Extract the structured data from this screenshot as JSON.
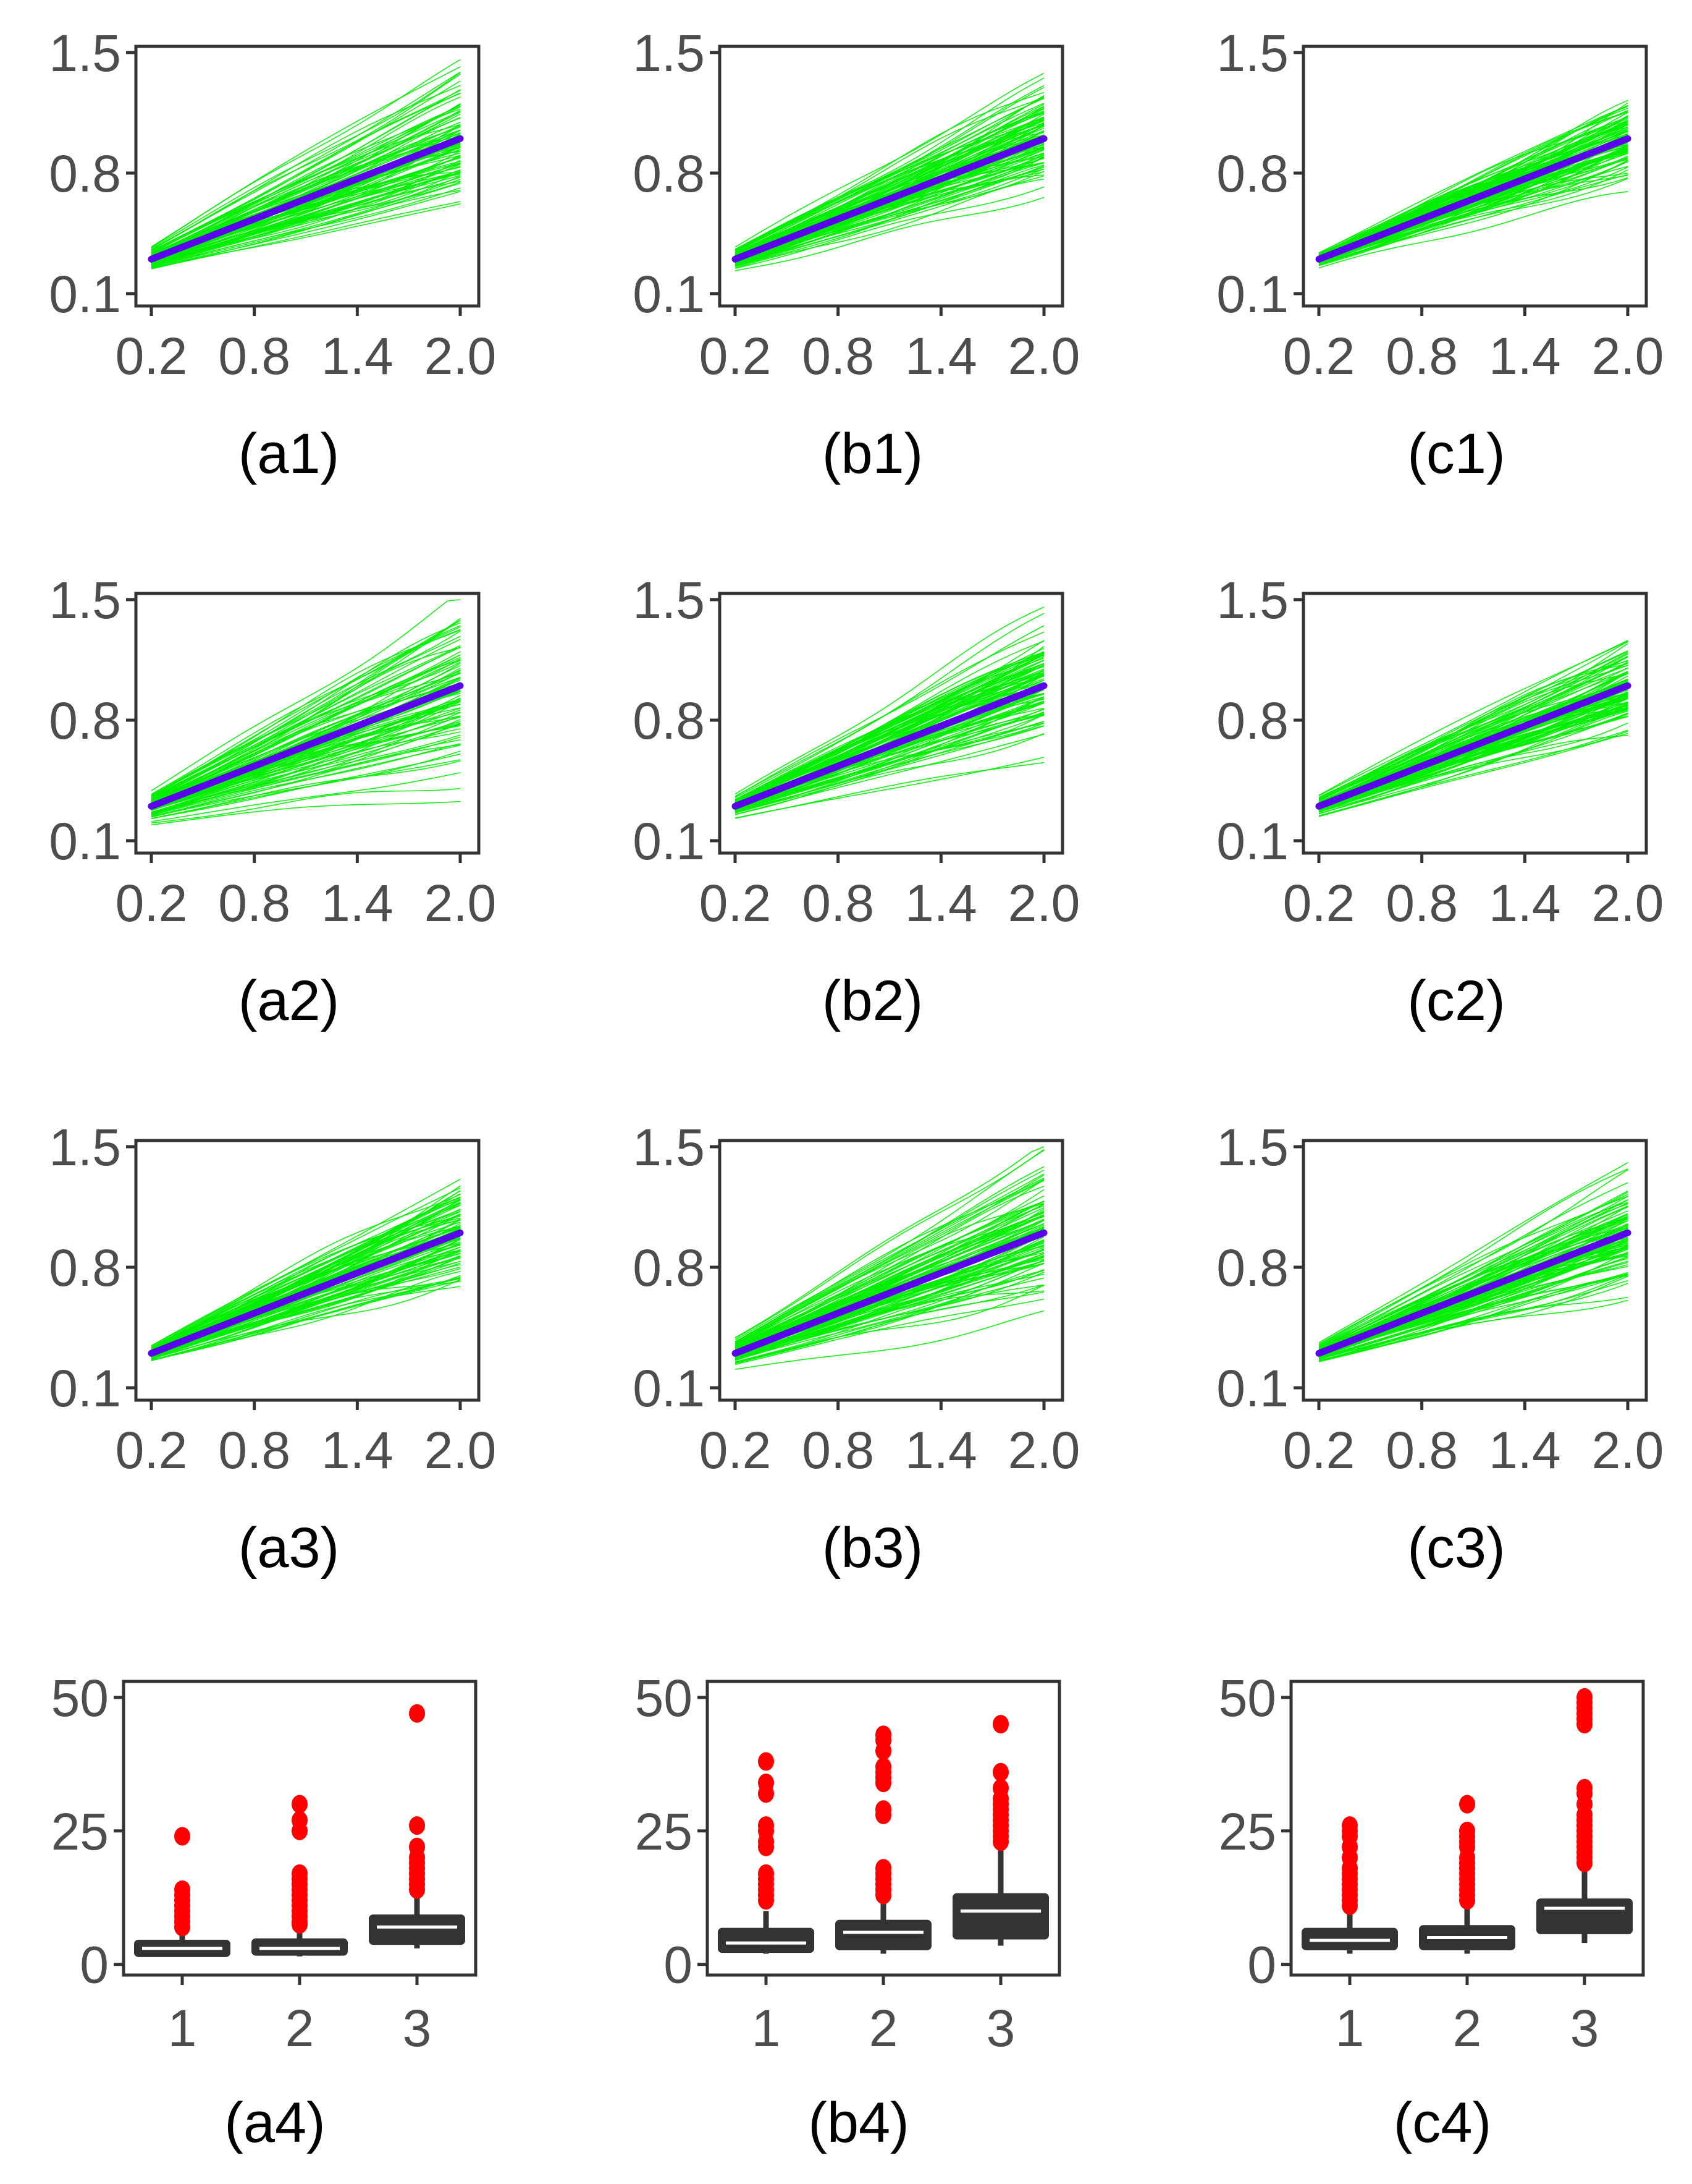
{
  "figure": {
    "line_color": "#00ee00",
    "mean_color": "#5b00ee",
    "box_color": "#333333",
    "outlier_color": "#ff0000"
  },
  "chart_data": [
    {
      "id": "a1",
      "type": "line",
      "label": "(a1)",
      "xlim": [
        0.2,
        2.0
      ],
      "ylim": [
        0.1,
        1.5
      ],
      "xticks": [
        "0.2",
        "0.8",
        "1.4",
        "2.0"
      ],
      "yticks": [
        "0.1",
        "0.8",
        "1.5"
      ],
      "mean_line": {
        "x": [
          0.2,
          2.0
        ],
        "y": [
          0.3,
          1.0
        ]
      },
      "spread_start": 0.06,
      "spread_end": 0.38,
      "n_curves": 100,
      "seed": 11
    },
    {
      "id": "b1",
      "type": "line",
      "label": "(b1)",
      "xlim": [
        0.2,
        2.0
      ],
      "ylim": [
        0.1,
        1.5
      ],
      "xticks": [
        "0.2",
        "0.8",
        "1.4",
        "2.0"
      ],
      "yticks": [
        "0.1",
        "0.8",
        "1.5"
      ],
      "mean_line": {
        "x": [
          0.2,
          2.0
        ],
        "y": [
          0.3,
          1.0
        ]
      },
      "spread_start": 0.05,
      "spread_end": 0.26,
      "n_curves": 100,
      "seed": 12
    },
    {
      "id": "c1",
      "type": "line",
      "label": "(c1)",
      "xlim": [
        0.2,
        2.0
      ],
      "ylim": [
        0.1,
        1.5
      ],
      "xticks": [
        "0.2",
        "0.8",
        "1.4",
        "2.0"
      ],
      "yticks": [
        "0.1",
        "0.8",
        "1.5"
      ],
      "mean_line": {
        "x": [
          0.2,
          2.0
        ],
        "y": [
          0.3,
          1.0
        ]
      },
      "spread_start": 0.04,
      "spread_end": 0.22,
      "n_curves": 100,
      "seed": 13
    },
    {
      "id": "a2",
      "type": "line",
      "label": "(a2)",
      "xlim": [
        0.2,
        2.0
      ],
      "ylim": [
        0.1,
        1.5
      ],
      "xticks": [
        "0.2",
        "0.8",
        "1.4",
        "2.0"
      ],
      "yticks": [
        "0.1",
        "0.8",
        "1.5"
      ],
      "mean_line": {
        "x": [
          0.2,
          2.0
        ],
        "y": [
          0.3,
          1.0
        ]
      },
      "spread_start": 0.07,
      "spread_end": 0.4,
      "n_curves": 100,
      "seed": 21
    },
    {
      "id": "b2",
      "type": "line",
      "label": "(b2)",
      "xlim": [
        0.2,
        2.0
      ],
      "ylim": [
        0.1,
        1.5
      ],
      "xticks": [
        "0.2",
        "0.8",
        "1.4",
        "2.0"
      ],
      "yticks": [
        "0.1",
        "0.8",
        "1.5"
      ],
      "mean_line": {
        "x": [
          0.2,
          2.0
        ],
        "y": [
          0.3,
          1.0
        ]
      },
      "spread_start": 0.05,
      "spread_end": 0.3,
      "n_curves": 100,
      "seed": 22
    },
    {
      "id": "c2",
      "type": "line",
      "label": "(c2)",
      "xlim": [
        0.2,
        2.0
      ],
      "ylim": [
        0.1,
        1.5
      ],
      "xticks": [
        "0.2",
        "0.8",
        "1.4",
        "2.0"
      ],
      "yticks": [
        "0.1",
        "0.8",
        "1.5"
      ],
      "mean_line": {
        "x": [
          0.2,
          2.0
        ],
        "y": [
          0.3,
          1.0
        ]
      },
      "spread_start": 0.05,
      "spread_end": 0.24,
      "n_curves": 100,
      "seed": 23
    },
    {
      "id": "a3",
      "type": "line",
      "label": "(a3)",
      "xlim": [
        0.2,
        2.0
      ],
      "ylim": [
        0.1,
        1.5
      ],
      "xticks": [
        "0.2",
        "0.8",
        "1.4",
        "2.0"
      ],
      "yticks": [
        "0.1",
        "0.8",
        "1.5"
      ],
      "mean_line": {
        "x": [
          0.2,
          2.0
        ],
        "y": [
          0.3,
          1.0
        ]
      },
      "spread_start": 0.05,
      "spread_end": 0.34,
      "n_curves": 100,
      "seed": 31
    },
    {
      "id": "b3",
      "type": "line",
      "label": "(b3)",
      "xlim": [
        0.2,
        2.0
      ],
      "ylim": [
        0.1,
        1.5
      ],
      "xticks": [
        "0.2",
        "0.8",
        "1.4",
        "2.0"
      ],
      "yticks": [
        "0.1",
        "0.8",
        "1.5"
      ],
      "mean_line": {
        "x": [
          0.2,
          2.0
        ],
        "y": [
          0.3,
          1.0
        ]
      },
      "spread_start": 0.07,
      "spread_end": 0.38,
      "n_curves": 100,
      "seed": 32
    },
    {
      "id": "c3",
      "type": "line",
      "label": "(c3)",
      "xlim": [
        0.2,
        2.0
      ],
      "ylim": [
        0.1,
        1.5
      ],
      "xticks": [
        "0.2",
        "0.8",
        "1.4",
        "2.0"
      ],
      "yticks": [
        "0.1",
        "0.8",
        "1.5"
      ],
      "mean_line": {
        "x": [
          0.2,
          2.0
        ],
        "y": [
          0.3,
          1.0
        ]
      },
      "spread_start": 0.05,
      "spread_end": 0.34,
      "n_curves": 100,
      "seed": 33
    },
    {
      "id": "a4",
      "type": "box",
      "label": "(a4)",
      "ylim": [
        -2,
        53
      ],
      "yticks": [
        "0",
        "25",
        "50"
      ],
      "categories": [
        "1",
        "2",
        "3"
      ],
      "boxes": [
        {
          "q1": 2,
          "median": 3,
          "q3": 4,
          "low": 1.5,
          "high": 6,
          "outliers": [
            7,
            8,
            9,
            10,
            11,
            12,
            13,
            14,
            24
          ]
        },
        {
          "q1": 2,
          "median": 3,
          "q3": 4.5,
          "low": 1.5,
          "high": 6.5,
          "outliers": [
            7.5,
            8,
            9,
            10,
            11,
            12,
            13,
            14,
            15,
            16,
            17,
            25,
            27,
            30
          ]
        },
        {
          "q1": 4,
          "median": 7,
          "q3": 9,
          "low": 3,
          "high": 13,
          "outliers": [
            14,
            15,
            16,
            17,
            18,
            19,
            20,
            22,
            26,
            47
          ]
        }
      ]
    },
    {
      "id": "b4",
      "type": "box",
      "label": "(b4)",
      "ylim": [
        -2,
        53
      ],
      "yticks": [
        "0",
        "25",
        "50"
      ],
      "categories": [
        "1",
        "2",
        "3"
      ],
      "boxes": [
        {
          "q1": 2.5,
          "median": 4,
          "q3": 6.5,
          "low": 2,
          "high": 10,
          "outliers": [
            12,
            13,
            14,
            15,
            16,
            17,
            22,
            23,
            25,
            26,
            32,
            34,
            38
          ]
        },
        {
          "q1": 3,
          "median": 6,
          "q3": 8,
          "low": 2,
          "high": 12,
          "outliers": [
            13,
            14,
            15,
            16,
            17,
            18,
            28,
            29,
            34,
            35,
            36,
            37,
            40,
            42,
            43
          ]
        },
        {
          "q1": 5,
          "median": 10,
          "q3": 13,
          "low": 3.5,
          "high": 22,
          "outliers": [
            23,
            24,
            25,
            26,
            27,
            28,
            29,
            30,
            31,
            33,
            36,
            45
          ]
        }
      ]
    },
    {
      "id": "c4",
      "type": "box",
      "label": "(c4)",
      "ylim": [
        -2,
        53
      ],
      "yticks": [
        "0",
        "25",
        "50"
      ],
      "categories": [
        "1",
        "2",
        "3"
      ],
      "boxes": [
        {
          "q1": 3,
          "median": 4.5,
          "q3": 6.5,
          "low": 2,
          "high": 10,
          "outliers": [
            11,
            12,
            13,
            14,
            15,
            16,
            17,
            18,
            20,
            22,
            24,
            25,
            26
          ]
        },
        {
          "q1": 3,
          "median": 5,
          "q3": 7,
          "low": 2,
          "high": 11,
          "outliers": [
            12,
            13,
            14,
            15,
            16,
            17,
            18,
            19,
            20,
            22,
            23,
            24,
            25,
            30
          ]
        },
        {
          "q1": 6,
          "median": 10.5,
          "q3": 12,
          "low": 4,
          "high": 18,
          "outliers": [
            19,
            20,
            21,
            22,
            23,
            24,
            25,
            26,
            27,
            28,
            30,
            32,
            33,
            45,
            46,
            47,
            48,
            49,
            50
          ]
        }
      ]
    }
  ]
}
